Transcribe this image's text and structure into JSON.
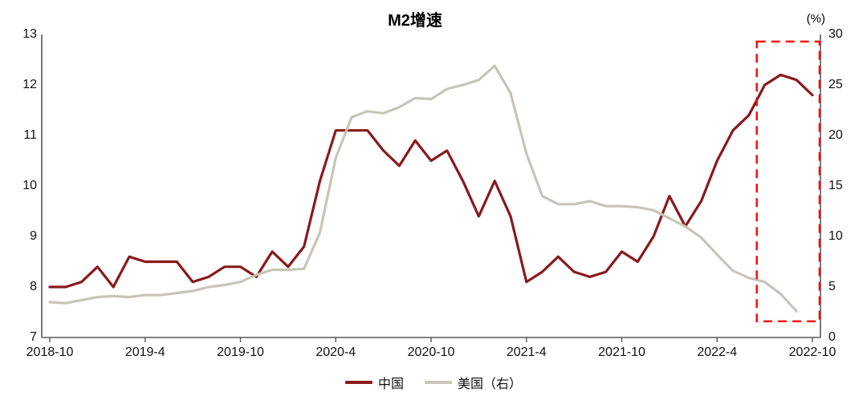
{
  "title": "M2增速",
  "chart_data": {
    "type": "line",
    "title": "M2增速",
    "x": [
      "2018-10",
      "2018-11",
      "2018-12",
      "2019-1",
      "2019-2",
      "2019-3",
      "2019-4",
      "2019-5",
      "2019-6",
      "2019-7",
      "2019-8",
      "2019-9",
      "2019-10",
      "2019-11",
      "2019-12",
      "2020-1",
      "2020-2",
      "2020-3",
      "2020-4",
      "2020-5",
      "2020-6",
      "2020-7",
      "2020-8",
      "2020-9",
      "2020-10",
      "2020-11",
      "2020-12",
      "2021-1",
      "2021-2",
      "2021-3",
      "2021-4",
      "2021-5",
      "2021-6",
      "2021-7",
      "2021-8",
      "2021-9",
      "2021-10",
      "2021-11",
      "2021-12",
      "2022-1",
      "2022-2",
      "2022-3",
      "2022-4",
      "2022-5",
      "2022-6",
      "2022-7",
      "2022-8",
      "2022-9",
      "2022-10"
    ],
    "x_tick_every": 6,
    "x_tick_labels": [
      "2018-10",
      "2019-4",
      "2019-10",
      "2020-4",
      "2020-10",
      "2021-4",
      "2021-10",
      "2022-4",
      "2022-10"
    ],
    "series": [
      {
        "name": "中国",
        "axis": "left",
        "color": "#8a191c",
        "values": [
          8.0,
          8.0,
          8.1,
          8.4,
          8.0,
          8.6,
          8.5,
          8.5,
          8.5,
          8.1,
          8.2,
          8.4,
          8.4,
          8.2,
          8.7,
          8.4,
          8.8,
          10.1,
          11.1,
          11.1,
          11.1,
          10.7,
          10.4,
          10.9,
          10.5,
          10.7,
          10.1,
          9.4,
          10.1,
          9.4,
          8.1,
          8.3,
          8.6,
          8.3,
          8.2,
          8.3,
          8.7,
          8.5,
          9.0,
          9.8,
          9.2,
          9.7,
          10.5,
          11.1,
          11.4,
          12.0,
          12.2,
          12.1,
          11.8
        ]
      },
      {
        "name": "美国（右）",
        "axis": "right",
        "color": "#c7c5b8",
        "values": [
          3.5,
          3.4,
          3.7,
          4.0,
          4.1,
          4.0,
          4.2,
          4.2,
          4.4,
          4.6,
          5.0,
          5.2,
          5.5,
          6.2,
          6.7,
          6.7,
          6.8,
          10.4,
          17.8,
          21.8,
          22.4,
          22.2,
          22.8,
          23.7,
          23.6,
          24.6,
          25.0,
          25.5,
          26.9,
          24.2,
          18.2,
          14.0,
          13.2,
          13.2,
          13.5,
          13.0,
          13.0,
          12.9,
          12.6,
          11.8,
          11.0,
          9.9,
          8.2,
          6.6,
          5.9,
          5.5,
          4.3,
          2.6,
          null
        ]
      }
    ],
    "left_axis": {
      "min": 7,
      "max": 13,
      "ticks": [
        7,
        8,
        9,
        10,
        11,
        12,
        13
      ]
    },
    "right_axis": {
      "min": 0,
      "max": 30,
      "ticks": [
        0,
        5,
        10,
        15,
        20,
        25,
        30
      ],
      "unit": "(%)"
    },
    "grid": "off",
    "legend_position": "bottom-center",
    "annotation": {
      "shape": "dashed-rect",
      "color": "#fe0000",
      "from_index": 44.5,
      "to_index": 48.45,
      "top_right_value": 29.3,
      "bottom_right_value": 1.6
    }
  }
}
